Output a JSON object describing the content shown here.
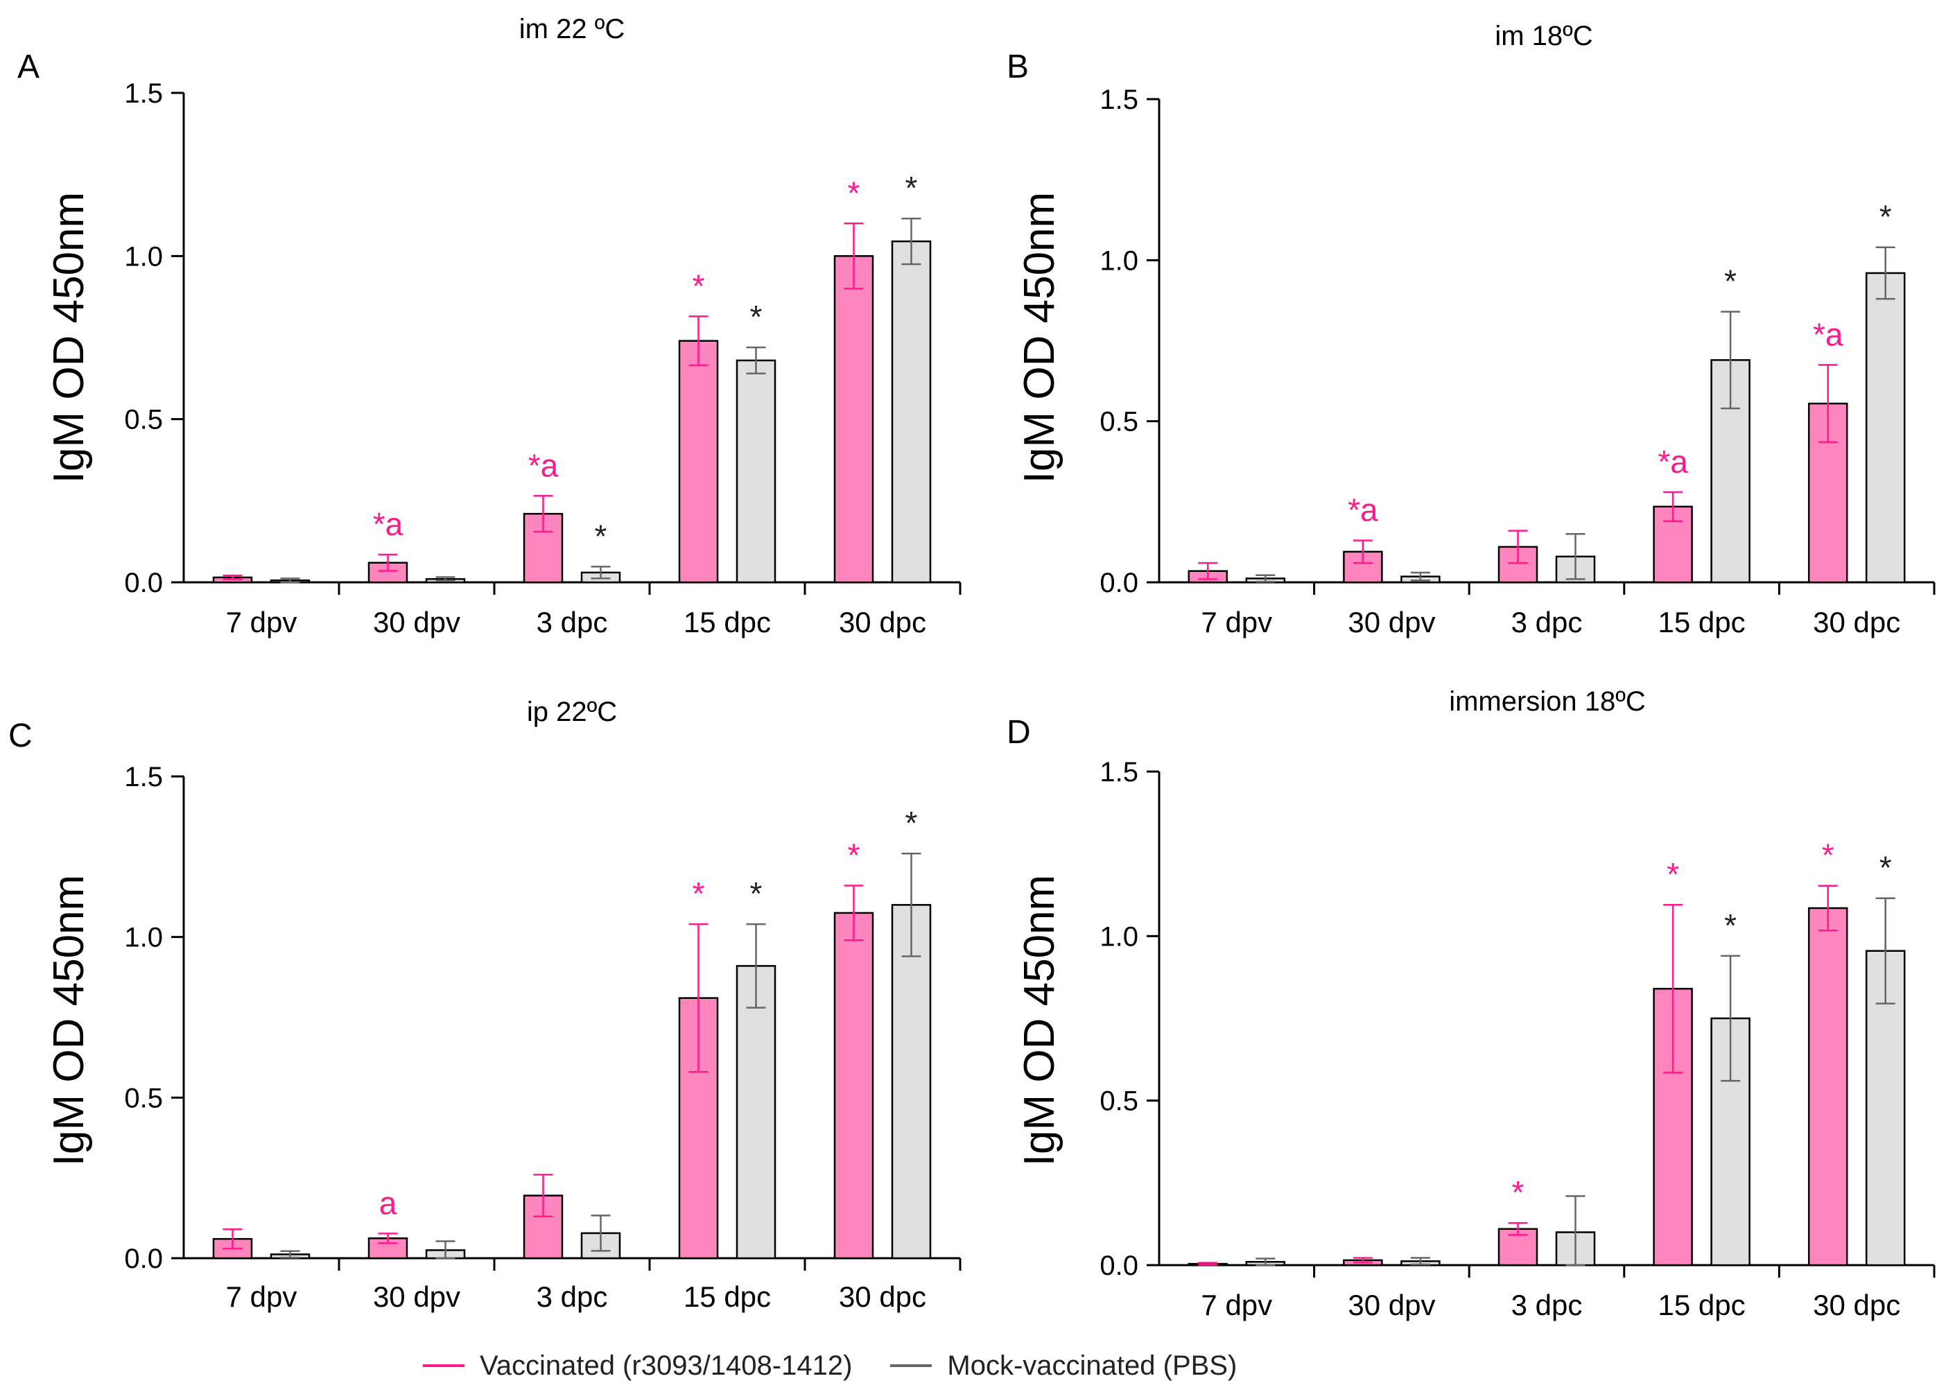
{
  "legend": {
    "vaccinated_label": "Vaccinated (r3093/1408-1412)",
    "mock_label": "Mock-vaccinated (PBS)"
  },
  "colors": {
    "vaccinated": "#ff85bf",
    "mock": "#e0e0e0",
    "vaccinated_text": "#ff1a8c",
    "mock_text": "#222222",
    "error_vacc": "#ff1a8c",
    "error_mock": "#666666"
  },
  "chart_data": [
    {
      "panel": "A",
      "type": "bar",
      "title": "im 22 ºC",
      "ylabel": "IgM OD 450nm",
      "ylim": [
        0,
        1.5
      ],
      "yticks": [
        "0.0",
        "0.5",
        "1.0",
        "1.5"
      ],
      "categories": [
        "7 dpv",
        "30 dpv",
        "3 dpc",
        "15 dpc",
        "30 dpc"
      ],
      "series": [
        {
          "name": "Vaccinated (r3093/1408-1412)",
          "values": [
            0.015,
            0.06,
            0.21,
            0.74,
            1.0
          ],
          "errors": [
            0.006,
            0.025,
            0.055,
            0.075,
            0.1
          ],
          "annotations": [
            "",
            "*a",
            "*a",
            "*",
            "*"
          ]
        },
        {
          "name": "Mock-vaccinated (PBS)",
          "values": [
            0.006,
            0.01,
            0.03,
            0.68,
            1.045
          ],
          "errors": [
            0.006,
            0.006,
            0.018,
            0.04,
            0.07
          ],
          "annotations": [
            "",
            "",
            "*",
            "*",
            "*"
          ]
        }
      ]
    },
    {
      "panel": "B",
      "type": "bar",
      "title": "im 18ºC",
      "ylabel": "IgM OD 450nm",
      "ylim": [
        0,
        1.5
      ],
      "yticks": [
        "0.0",
        "0.5",
        "1.0",
        "1.5"
      ],
      "categories": [
        "7 dpv",
        "30 dpv",
        "3 dpc",
        "15 dpc",
        "30 dpc"
      ],
      "series": [
        {
          "name": "Vaccinated (r3093/1408-1412)",
          "values": [
            0.035,
            0.095,
            0.11,
            0.235,
            0.555
          ],
          "errors": [
            0.025,
            0.035,
            0.05,
            0.045,
            0.12
          ],
          "annotations": [
            "",
            "*a",
            "",
            "*a",
            "*a"
          ]
        },
        {
          "name": "Mock-vaccinated (PBS)",
          "values": [
            0.012,
            0.018,
            0.08,
            0.69,
            0.96
          ],
          "errors": [
            0.01,
            0.012,
            0.07,
            0.15,
            0.08
          ],
          "annotations": [
            "",
            "",
            "",
            "*",
            "*"
          ]
        }
      ]
    },
    {
      "panel": "C",
      "type": "bar",
      "title": "ip 22ºC",
      "ylabel": "IgM OD 450nm",
      "ylim": [
        0,
        1.5
      ],
      "yticks": [
        "0.0",
        "0.5",
        "1.0",
        "1.5"
      ],
      "categories": [
        "7 dpv",
        "30 dpv",
        "3 dpc",
        "15 dpc",
        "30 dpc"
      ],
      "series": [
        {
          "name": "Vaccinated (r3093/1408-1412)",
          "values": [
            0.06,
            0.062,
            0.195,
            0.81,
            1.075
          ],
          "errors": [
            0.03,
            0.015,
            0.065,
            0.23,
            0.085
          ],
          "annotations": [
            "",
            "a",
            "",
            "*",
            "*"
          ]
        },
        {
          "name": "Mock-vaccinated (PBS)",
          "values": [
            0.012,
            0.025,
            0.078,
            0.91,
            1.1
          ],
          "errors": [
            0.01,
            0.028,
            0.055,
            0.13,
            0.16
          ],
          "annotations": [
            "",
            "",
            "",
            "*",
            "*"
          ]
        }
      ]
    },
    {
      "panel": "D",
      "type": "bar",
      "title": "immersion 18ºC",
      "ylabel": "IgM OD 450nm",
      "ylim": [
        0,
        1.5
      ],
      "yticks": [
        "0.0",
        "0.5",
        "1.0",
        "1.5"
      ],
      "categories": [
        "7 dpv",
        "30 dpv",
        "3 dpc",
        "15 dpc",
        "30 dpc"
      ],
      "series": [
        {
          "name": "Vaccinated (r3093/1408-1412)",
          "values": [
            0.004,
            0.015,
            0.11,
            0.84,
            1.085
          ],
          "errors": [
            0.003,
            0.007,
            0.018,
            0.255,
            0.068
          ],
          "annotations": [
            "",
            "",
            "*",
            "*",
            "*"
          ]
        },
        {
          "name": "Mock-vaccinated (PBS)",
          "values": [
            0.01,
            0.012,
            0.1,
            0.75,
            0.955
          ],
          "errors": [
            0.01,
            0.01,
            0.11,
            0.19,
            0.16
          ],
          "annotations": [
            "",
            "",
            "",
            "*",
            "*"
          ]
        }
      ]
    }
  ]
}
